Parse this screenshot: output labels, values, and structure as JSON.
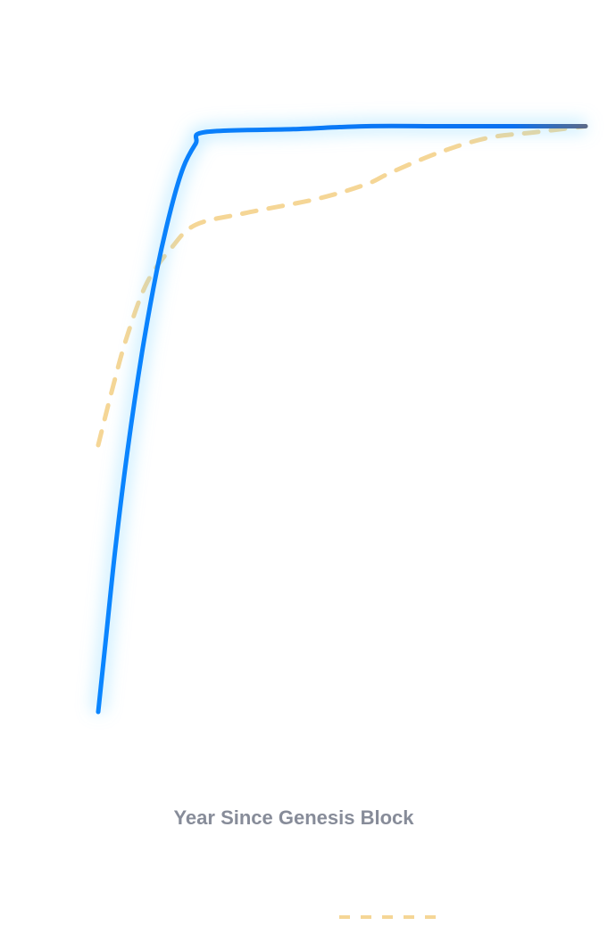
{
  "chart_data": {
    "type": "line",
    "title": "",
    "xlabel": "Year Since Genesis Block",
    "ylabel": "",
    "xlim": [
      0,
      20
    ],
    "ylim": [
      0,
      100
    ],
    "grid": false,
    "legend": "bottom",
    "series": [
      {
        "name": "",
        "color": "#0a85ff",
        "style": "solid",
        "x": [
          0,
          0.3,
          0.7,
          1.2,
          1.8,
          2.4,
          3.0,
          3.5,
          4.0,
          4.4,
          8.0,
          11.0,
          14.0,
          17.0,
          20.0
        ],
        "y": [
          0,
          12,
          28,
          45,
          62,
          76,
          87,
          94,
          98,
          100,
          100.5,
          101,
          101,
          101,
          101
        ]
      },
      {
        "name": "",
        "color": "#f5d696",
        "style": "dashed",
        "x": [
          0,
          0.6,
          1.2,
          2.0,
          3.0,
          4.0,
          6.0,
          9.0,
          11.0,
          12.0,
          14.0,
          16.0,
          18.0,
          20.0
        ],
        "y": [
          46,
          56,
          65,
          74,
          80,
          84,
          86,
          88.5,
          91,
          93,
          96.5,
          99,
          100,
          101
        ]
      }
    ]
  }
}
